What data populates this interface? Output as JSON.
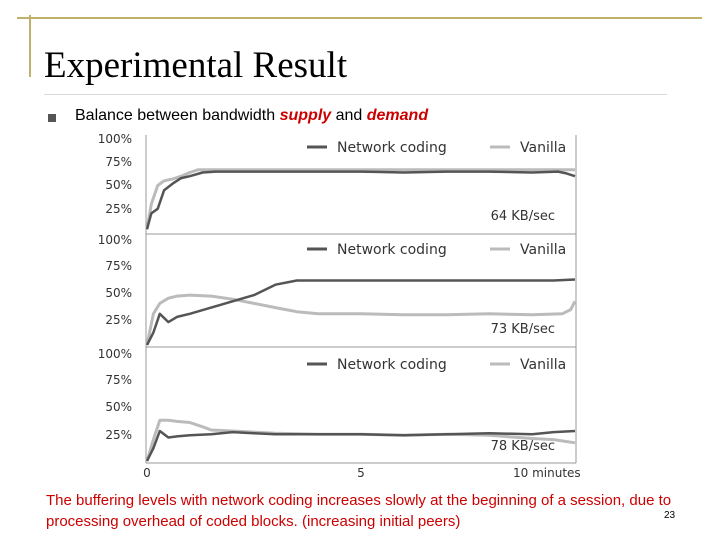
{
  "colors": {
    "accent": "#bfb06a",
    "title_rule": "#d9d9d9",
    "bullet_marker": "#555555",
    "emphasis": "#cc0000",
    "caption": "#cc0000",
    "series_network_coding": "#555555",
    "series_vanilla": "#bbbbbb",
    "chart_text": "#333333"
  },
  "slide": {
    "title": "Experimental Result",
    "bullet_prefix": "Balance between bandwidth ",
    "bullet_supply": "supply",
    "bullet_and": " and ",
    "bullet_demand": "demand",
    "caption": "The buffering levels with network coding increases slowly at the beginning of a session, due to processing overhead of coded blocks. (increasing initial peers)",
    "page_number": "23"
  },
  "chart_data": [
    {
      "type": "line",
      "annotation": "64 KB/sec",
      "yticks": [
        "100%",
        "75%",
        "50%",
        "25%"
      ],
      "ylim": [
        0,
        100
      ],
      "xlim": [
        0,
        10
      ],
      "grid": false,
      "legend": "top",
      "series": [
        {
          "name": "Network coding",
          "color": "#555555",
          "x": [
            0,
            0.1,
            0.25,
            0.4,
            0.6,
            0.8,
            1.0,
            1.3,
            1.6,
            2,
            3,
            4,
            5,
            6,
            7,
            8,
            9,
            9.6,
            9.8,
            10
          ],
          "y": [
            3,
            20,
            25,
            45,
            52,
            58,
            60,
            64,
            65,
            65,
            65,
            65,
            65,
            64,
            65,
            65,
            64,
            65,
            63,
            60
          ]
        },
        {
          "name": "Vanilla",
          "color": "#bbbbbb",
          "x": [
            0,
            0.1,
            0.25,
            0.4,
            0.6,
            0.8,
            1.0,
            1.2,
            1.5,
            2,
            3,
            4,
            5,
            6,
            7,
            8,
            9,
            9.6,
            9.8,
            10
          ],
          "y": [
            3,
            30,
            50,
            55,
            57,
            60,
            64,
            67,
            67,
            67,
            67,
            67,
            67,
            67,
            67,
            67,
            67,
            67,
            67,
            67
          ]
        }
      ]
    },
    {
      "type": "line",
      "annotation": "73 KB/sec",
      "yticks": [
        "100%",
        "75%",
        "50%",
        "25%"
      ],
      "ylim": [
        0,
        100
      ],
      "xlim": [
        0,
        10
      ],
      "grid": false,
      "legend": "top",
      "series": [
        {
          "name": "Network coding",
          "color": "#555555",
          "x": [
            0,
            0.15,
            0.3,
            0.5,
            0.7,
            1.0,
            1.5,
            2,
            2.5,
            3,
            3.5,
            4,
            5,
            6,
            7,
            8,
            9,
            9.5,
            10
          ],
          "y": [
            0,
            12,
            30,
            22,
            27,
            30,
            36,
            42,
            48,
            58,
            62,
            62,
            62,
            62,
            62,
            62,
            62,
            62,
            63
          ]
        },
        {
          "name": "Vanilla",
          "color": "#bbbbbb",
          "x": [
            0,
            0.15,
            0.3,
            0.5,
            0.7,
            1.0,
            1.5,
            2,
            2.5,
            3,
            3.5,
            4,
            5,
            6,
            7,
            8,
            9,
            9.7,
            9.9,
            10
          ],
          "y": [
            0,
            30,
            40,
            45,
            47,
            48,
            47,
            44,
            40,
            36,
            32,
            30,
            30,
            29,
            29,
            30,
            29,
            30,
            34,
            42
          ]
        }
      ]
    },
    {
      "type": "line",
      "annotation": "78 KB/sec",
      "yticks": [
        "100%",
        "75%",
        "50%",
        "25%"
      ],
      "ylim": [
        0,
        100
      ],
      "xlim": [
        0,
        10
      ],
      "xticks": [
        "0",
        "5",
        "10 minutes"
      ],
      "grid": false,
      "legend": "top",
      "series": [
        {
          "name": "Network coding",
          "color": "#555555",
          "x": [
            0,
            0.15,
            0.3,
            0.5,
            0.7,
            1.0,
            1.5,
            2,
            2.5,
            3,
            4,
            5,
            6,
            7,
            8,
            9,
            9.5,
            10
          ],
          "y": [
            0,
            12,
            28,
            22,
            23,
            24,
            25,
            27,
            26,
            25,
            25,
            25,
            24,
            25,
            26,
            25,
            27,
            28
          ]
        },
        {
          "name": "Vanilla",
          "color": "#bbbbbb",
          "x": [
            0,
            0.15,
            0.3,
            0.5,
            0.7,
            1.0,
            1.3,
            1.5,
            2,
            2.5,
            3,
            4,
            5,
            6,
            7,
            8,
            9,
            9.5,
            10
          ],
          "y": [
            0,
            20,
            38,
            38,
            37,
            36,
            32,
            29,
            28,
            27,
            26,
            25,
            25,
            24,
            25,
            24,
            21,
            20,
            17
          ]
        }
      ]
    }
  ]
}
